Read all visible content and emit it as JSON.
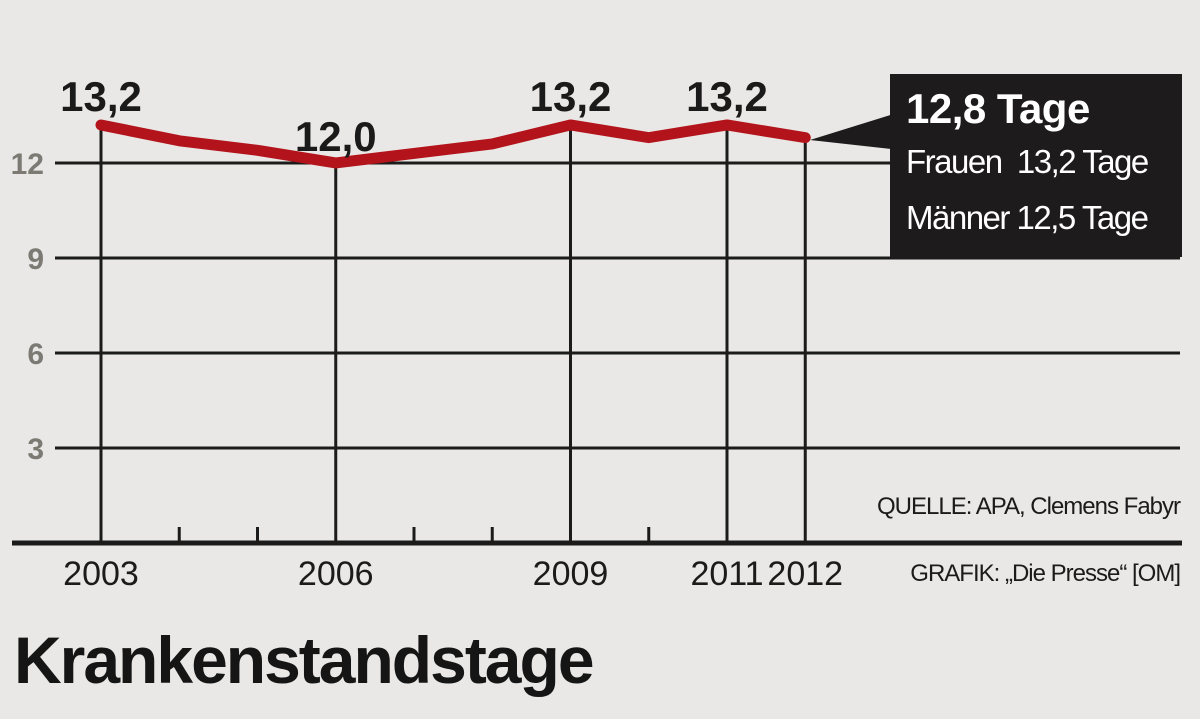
{
  "chart_data": {
    "type": "line",
    "title": "Krankenstandstage",
    "xlabel": "",
    "ylabel": "",
    "ylim": [
      0,
      14
    ],
    "yticks": [
      3,
      6,
      9,
      12
    ],
    "x_tick_labels": [
      "2003",
      "2006",
      "2009",
      "2011",
      "2012"
    ],
    "x": [
      2003,
      2004,
      2005,
      2006,
      2007,
      2008,
      2009,
      2010,
      2011,
      2012
    ],
    "series": [
      {
        "name": "Krankenstandstage",
        "color": "#b3141b",
        "values": [
          13.2,
          12.7,
          12.4,
          12.0,
          12.3,
          12.6,
          13.2,
          12.8,
          13.2,
          12.8
        ]
      }
    ],
    "data_labels": [
      {
        "x": 2003,
        "text": "13,2"
      },
      {
        "x": 2006,
        "text": "12,0"
      },
      {
        "x": 2009,
        "text": "13,2"
      },
      {
        "x": 2011,
        "text": "13,2"
      }
    ],
    "annotation": {
      "x": 2012,
      "headline": "12,8 Tage",
      "lines": [
        "Frauen  13,2 Tage",
        "Männer 12,5 Tage"
      ]
    },
    "grid": true,
    "legend": "none"
  },
  "callout": {
    "headline": "12,8 Tage",
    "women": "Frauen  13,2 Tage",
    "men": "Männer 12,5 Tage"
  },
  "source": "QUELLE: APA, Clemens Fabyr",
  "credit": "GRAFIK: „Die Presse“ [OM]",
  "title": "Krankenstandstage",
  "colors": {
    "background": "#e9e8e6",
    "line": "#b3141b",
    "ink": "#1c1b1b",
    "axis_label": "#7d7a74",
    "callout_bg": "#1d1b1b"
  }
}
